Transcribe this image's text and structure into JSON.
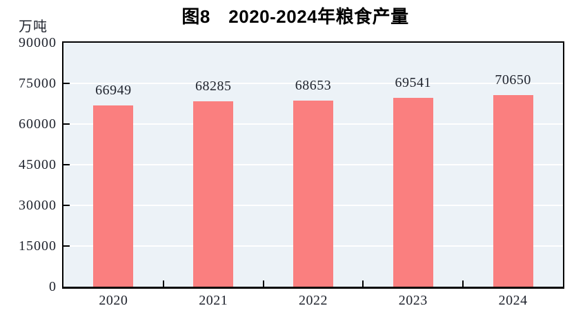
{
  "figure": {
    "title": "图8　2020-2024年粮食产量",
    "unit_label": "万吨"
  },
  "chart_data": {
    "type": "bar",
    "title": "图8　2020-2024年粮食产量",
    "xlabel": "",
    "ylabel": "万吨",
    "categories": [
      "2020",
      "2021",
      "2022",
      "2023",
      "2024"
    ],
    "values": [
      66949,
      68285,
      68653,
      69541,
      70650
    ],
    "data_labels": [
      "66949",
      "68285",
      "68653",
      "69541",
      "70650"
    ],
    "ylim": [
      0,
      90000
    ],
    "yticks": [
      0,
      15000,
      30000,
      45000,
      60000,
      75000,
      90000
    ],
    "grid": "horizontal white gridlines",
    "legend": "none",
    "colors": {
      "bar_fill": "#FA7F7F",
      "plot_background": "#ECF2F7",
      "gridline": "#FFFFFF",
      "axis_frame": "#000000",
      "number_text": "#20242E",
      "title_text": "#000000"
    }
  }
}
